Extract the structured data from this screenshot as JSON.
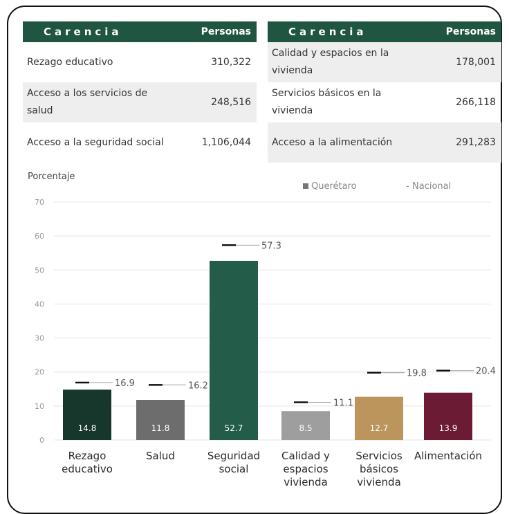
{
  "tables": [
    {
      "header": {
        "carencia": "Carencia",
        "personas": "Personas"
      },
      "rows": [
        {
          "carencia": "Rezago educativo",
          "personas": "310,322"
        },
        {
          "carencia": "Acceso a los servicios de salud",
          "personas": "248,516"
        },
        {
          "carencia": "Acceso a la seguridad social",
          "personas": "1,106,044"
        }
      ]
    },
    {
      "header": {
        "carencia": "Carencia",
        "personas": "Personas"
      },
      "rows": [
        {
          "carencia": "Calidad y espacios en la vivienda",
          "personas": "178,001"
        },
        {
          "carencia": "Servicios básicos en la vivienda",
          "personas": "266,118"
        },
        {
          "carencia": "Acceso a la alimentación",
          "personas": "291,283"
        }
      ]
    }
  ],
  "chart_data": {
    "type": "bar",
    "ylabel": "Porcentaje",
    "ylim": [
      0,
      70
    ],
    "yticks": [
      0,
      10,
      20,
      30,
      40,
      50,
      60,
      70
    ],
    "grid": true,
    "legend_position": "top-right",
    "categories": [
      [
        "Rezago",
        "educativo"
      ],
      [
        "Salud"
      ],
      [
        "Seguridad",
        "social"
      ],
      [
        "Calidad y",
        "espacios",
        "vivienda"
      ],
      [
        "Servicios",
        "básicos",
        "vivienda"
      ],
      [
        "Alimentación"
      ]
    ],
    "series": [
      {
        "name": "Querétaro",
        "type": "bar",
        "values": [
          14.8,
          11.8,
          52.7,
          8.5,
          12.7,
          13.9
        ],
        "labels": [
          "14.8",
          "11.8",
          "52.7",
          "8.5",
          "12.7",
          "13.9"
        ],
        "colors": [
          "#17362c",
          "#6d6d6d",
          "#245c4a",
          "#9e9e9e",
          "#bc955c",
          "#6b1b33"
        ]
      },
      {
        "name": "Nacional",
        "type": "marker",
        "values": [
          16.9,
          16.2,
          57.3,
          11.1,
          19.8,
          20.4
        ],
        "labels": [
          "16.9",
          "16.2",
          "57.3",
          "11.1",
          "19.8",
          "20.4"
        ]
      }
    ],
    "legend": {
      "queretaro": "Querétaro",
      "nacional": "Nacional",
      "queretaro_color": "#777777",
      "nacional_color": "#555555"
    }
  }
}
